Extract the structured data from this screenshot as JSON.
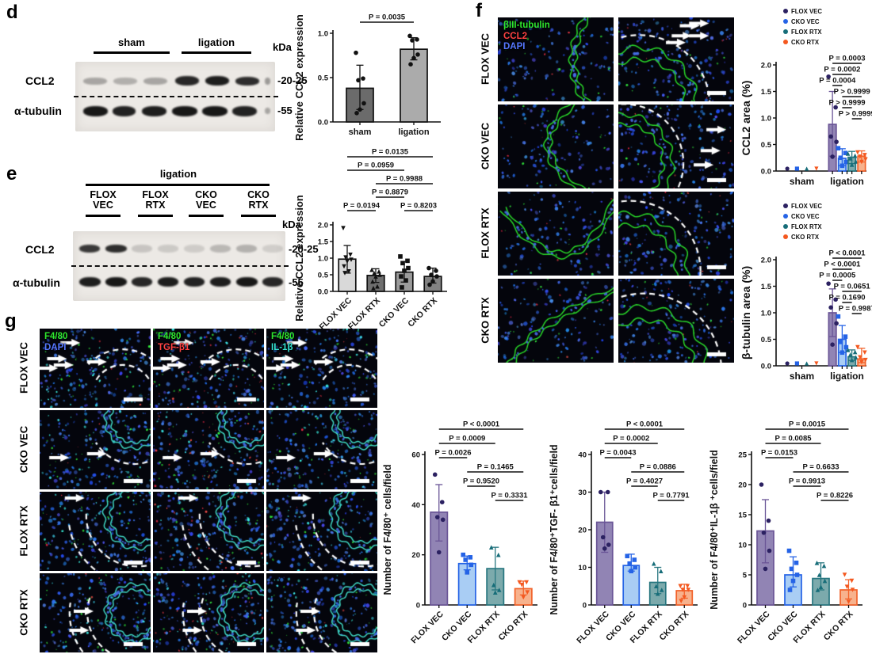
{
  "panels": {
    "d": "d",
    "e": "e",
    "f": "f",
    "g": "g"
  },
  "blot_d": {
    "group_labels": [
      "sham",
      "ligation"
    ],
    "kda_label": "kDa",
    "bands": [
      {
        "protein": "CCL2",
        "mw": "-20-25"
      },
      {
        "protein": "α-tubulin",
        "mw": "-55"
      }
    ]
  },
  "blot_e": {
    "condition_label": "ligation",
    "lane_groups": [
      {
        "line1": "FLOX",
        "line2": "VEC"
      },
      {
        "line1": "FLOX",
        "line2": "RTX"
      },
      {
        "line1": "CKO",
        "line2": "VEC"
      },
      {
        "line1": "CKO",
        "line2": "RTX"
      }
    ],
    "kda_label": "kDa",
    "bands": [
      {
        "protein": "CCL2",
        "mw": "-20-25"
      },
      {
        "protein": "α-tubulin",
        "mw": "-55"
      }
    ]
  },
  "panel_f": {
    "row_labels": [
      "FLOX VEC",
      "CKO VEC",
      "FLOX RTX",
      "CKO RTX"
    ],
    "stain_legend": [
      {
        "label": "βIII-tubulin",
        "color": "#2ee62e"
      },
      {
        "label": "CCL2",
        "color": "#ff4242"
      },
      {
        "label": "DAPI",
        "color": "#5577ff"
      }
    ]
  },
  "panel_g": {
    "row_labels": [
      "FLOX VEC",
      "CKO VEC",
      "FLOX RTX",
      "CKO RTX"
    ],
    "column_stains": [
      [
        {
          "label": "F4/80",
          "color": "#2ee62e"
        },
        {
          "label": "DAPI",
          "color": "#5577ff"
        }
      ],
      [
        {
          "label": "F4/80",
          "color": "#2ee62e"
        },
        {
          "label": "TGF-β1",
          "color": "#ff4242"
        }
      ],
      [
        {
          "label": "F4/80",
          "color": "#2ee62e"
        },
        {
          "label": "IL-1β",
          "color": "#35e3d2"
        }
      ]
    ]
  },
  "series_colors": {
    "FLOX VEC": {
      "dot": "#2b2161",
      "fill": "#9184b4",
      "edge": "#6a5596",
      "marker": "circle"
    },
    "CKO VEC": {
      "dot": "#2563e6",
      "fill": "#a9cdf4",
      "edge": "#2563e6",
      "marker": "square"
    },
    "FLOX RTX": {
      "dot": "#176d79",
      "fill": "#7caaac",
      "edge": "#27767f",
      "marker": "tri-up"
    },
    "CKO RTX": {
      "dot": "#f4581f",
      "fill": "#f7b28d",
      "edge": "#f2622a",
      "marker": "tri-down"
    }
  },
  "chart_data": [
    {
      "id": "d_ccl2_wb",
      "type": "bar",
      "title": "",
      "ylabel": "Relative CCL2 expression",
      "ylim": [
        0,
        1.0
      ],
      "yticks": [
        0,
        0.5,
        1.0
      ],
      "tick_decimals": 1,
      "categories": [
        "sham",
        "ligation"
      ],
      "values": [
        0.38,
        0.82
      ],
      "errors": [
        [
          0.14,
          0.64
        ],
        [
          0.7,
          0.95
        ]
      ],
      "points": [
        [
          0.78,
          0.49,
          0.47,
          0.21,
          0.14,
          0.1
        ],
        [
          0.97,
          0.93,
          0.92,
          0.76,
          0.72,
          0.65
        ]
      ],
      "bar_fills": [
        "#6b6b6b",
        "#ababab"
      ],
      "markers": [
        "circle",
        "circle"
      ],
      "marker_color": "#111111",
      "brackets": [
        {
          "a": 0,
          "b": 1,
          "row": 0,
          "label": "P = 0.0035"
        }
      ]
    },
    {
      "id": "e_ccl2_wb",
      "type": "bar",
      "title": "",
      "ylabel": "Relative CCL2 expression",
      "ylim": [
        0,
        2.0
      ],
      "yticks": [
        0,
        0.5,
        1.0,
        1.5,
        2.0
      ],
      "tick_decimals": 1,
      "categories": [
        "FLOX VEC",
        "FLOX RTX",
        "CKO VEC",
        "CKO RTX"
      ],
      "values": [
        0.97,
        0.48,
        0.58,
        0.45
      ],
      "errors": [
        [
          0.55,
          1.38
        ],
        [
          0.27,
          0.68
        ],
        [
          0.28,
          0.9
        ],
        [
          0.25,
          0.7
        ]
      ],
      "points": [
        [
          1.9,
          1.1,
          1.02,
          0.95,
          0.9,
          0.75,
          0.6,
          0.55
        ],
        [
          0.65,
          0.6,
          0.55,
          0.5,
          0.45,
          0.3,
          0.15,
          0.1
        ],
        [
          1.05,
          0.92,
          0.85,
          0.7,
          0.62,
          0.45,
          0.33,
          0.12
        ],
        [
          0.7,
          0.62,
          0.5,
          0.45,
          0.3,
          0.2
        ]
      ],
      "bar_fills": [
        "#d9d9d9",
        "#6f6f6f",
        "#9b9b9b",
        "#828282"
      ],
      "markers": [
        "tri-down",
        "tri-up",
        "square",
        "circle"
      ],
      "marker_color": "#111111",
      "brackets": [
        {
          "a": 0,
          "b": 3,
          "row": 0,
          "label": "P = 0.0135"
        },
        {
          "a": 0,
          "b": 2,
          "row": 1,
          "label": "P = 0.0959"
        },
        {
          "a": 1,
          "b": 3,
          "row": 2,
          "label": "P = 0.9988"
        },
        {
          "a": 1,
          "b": 2,
          "row": 3,
          "label": "P = 0.8879"
        },
        {
          "a": 0,
          "b": 1,
          "row": 4,
          "label": "P = 0.0194"
        },
        {
          "a": 2,
          "b": 3,
          "row": 4,
          "label": "P = 0.8203"
        }
      ]
    },
    {
      "id": "f_ccl2_area",
      "type": "grouped",
      "title": "",
      "ylabel": "CCL2 area (%)",
      "ylim": [
        0,
        2.0
      ],
      "yticks": [
        0,
        0.5,
        1.0,
        1.5,
        2.0
      ],
      "tick_decimals": 1,
      "group_labels": [
        "sham",
        "ligation"
      ],
      "series": [
        "FLOX VEC",
        "CKO VEC",
        "FLOX RTX",
        "CKO RTX"
      ],
      "sham_values": [
        0,
        0,
        0,
        0
      ],
      "values": [
        0.88,
        0.24,
        0.26,
        0.28
      ],
      "errors": [
        [
          0.28,
          1.5
        ],
        [
          0.1,
          0.42
        ],
        [
          0.14,
          0.37
        ],
        [
          0.17,
          0.38
        ]
      ],
      "points": [
        [
          1.78,
          1.2,
          0.65,
          0.55,
          0.27
        ],
        [
          0.43,
          0.34,
          0.25,
          0.17,
          0.1
        ],
        [
          0.33,
          0.29,
          0.24,
          0.18,
          0.12
        ],
        [
          0.35,
          0.3,
          0.27,
          0.22,
          0.17
        ]
      ],
      "brackets": [
        {
          "a": 0,
          "b": 3,
          "row": 0,
          "label": "P = 0.0003"
        },
        {
          "a": 0,
          "b": 2,
          "row": 1,
          "label": "P = 0.0002"
        },
        {
          "a": 0,
          "b": 1,
          "row": 2,
          "label": "P = 0.0004"
        },
        {
          "a": 1,
          "b": 3,
          "row": 3,
          "label": "P > 0.9999"
        },
        {
          "a": 1,
          "b": 2,
          "row": 4,
          "label": "P > 0.9999"
        },
        {
          "a": 2,
          "b": 3,
          "row": 5,
          "label": "P > 0.9999"
        }
      ]
    },
    {
      "id": "f_btub_area",
      "type": "grouped",
      "title": "",
      "ylabel": "β-tubulin area (%)",
      "ylim": [
        0,
        2.0
      ],
      "yticks": [
        0,
        0.5,
        1.0,
        1.5,
        2.0
      ],
      "tick_decimals": 1,
      "group_labels": [
        "sham",
        "ligation"
      ],
      "series": [
        "FLOX VEC",
        "CKO VEC",
        "FLOX RTX",
        "CKO RTX"
      ],
      "sham_values": [
        0,
        0,
        0,
        0
      ],
      "values": [
        1.0,
        0.5,
        0.17,
        0.13
      ],
      "errors": [
        [
          0.55,
          1.45
        ],
        [
          0.25,
          0.76
        ],
        [
          0.1,
          0.3
        ],
        [
          0.06,
          0.33
        ]
      ],
      "points": [
        [
          1.55,
          1.25,
          1.1,
          0.8,
          0.4
        ],
        [
          0.93,
          0.55,
          0.45,
          0.35,
          0.25
        ],
        [
          0.3,
          0.26,
          0.21,
          0.16,
          0.11
        ],
        [
          0.35,
          0.25,
          0.16,
          0.11,
          0.07
        ]
      ],
      "brackets": [
        {
          "a": 0,
          "b": 3,
          "row": 0,
          "label": "P < 0.0001"
        },
        {
          "a": 0,
          "b": 2,
          "row": 1,
          "label": "P < 0.0001"
        },
        {
          "a": 0,
          "b": 1,
          "row": 2,
          "label": "P = 0.0005"
        },
        {
          "a": 1,
          "b": 3,
          "row": 3,
          "label": "P = 0.0651"
        },
        {
          "a": 1,
          "b": 2,
          "row": 4,
          "label": "P = 0.1690"
        },
        {
          "a": 2,
          "b": 3,
          "row": 5,
          "label": "P = 0.9987"
        }
      ]
    },
    {
      "id": "g_f480",
      "type": "bar",
      "title": "",
      "ylabel": "Number of F4/80⁺ cells/field",
      "ylim": [
        0,
        60
      ],
      "yticks": [
        0,
        20,
        40,
        60
      ],
      "tick_decimals": 0,
      "categories": [
        "FLOX VEC",
        "CKO VEC",
        "FLOX RTX",
        "CKO RTX"
      ],
      "series_names": [
        "FLOX VEC",
        "CKO VEC",
        "FLOX RTX",
        "CKO RTX"
      ],
      "values": [
        37,
        16.5,
        14.5,
        6.5
      ],
      "errors": [
        [
          25.5,
          48
        ],
        [
          14,
          19.5
        ],
        [
          6,
          23
        ],
        [
          4,
          9.5
        ]
      ],
      "points": [
        [
          52,
          41,
          35,
          34,
          21
        ],
        [
          20,
          19,
          18,
          16,
          13
        ],
        [
          23,
          20,
          8,
          6,
          5
        ],
        [
          9,
          9,
          8,
          5,
          3
        ]
      ],
      "brackets": [
        {
          "a": 0,
          "b": 3,
          "row": 0,
          "label": "P < 0.0001"
        },
        {
          "a": 0,
          "b": 2,
          "row": 1,
          "label": "P = 0.0009"
        },
        {
          "a": 0,
          "b": 1,
          "row": 2,
          "label": "P = 0.0026"
        },
        {
          "a": 1,
          "b": 3,
          "row": 3,
          "label": "P = 0.1465"
        },
        {
          "a": 1,
          "b": 2,
          "row": 4,
          "label": "P = 0.9520"
        },
        {
          "a": 2,
          "b": 3,
          "row": 5,
          "label": "P = 0.3331"
        }
      ]
    },
    {
      "id": "g_tgfb1",
      "type": "bar",
      "title": "",
      "ylabel": "Number of F4/80⁺TGF- β1⁺cells/field",
      "ylim": [
        0,
        40
      ],
      "yticks": [
        0,
        10,
        20,
        30,
        40
      ],
      "tick_decimals": 0,
      "categories": [
        "FLOX VEC",
        "CKO VEC",
        "FLOX RTX",
        "CKO RTX"
      ],
      "series_names": [
        "FLOX VEC",
        "CKO VEC",
        "FLOX RTX",
        "CKO RTX"
      ],
      "values": [
        22,
        10.5,
        6,
        3.8
      ],
      "errors": [
        [
          14,
          30
        ],
        [
          9,
          13.5
        ],
        [
          3,
          10
        ],
        [
          1.8,
          5.5
        ]
      ],
      "points": [
        [
          30,
          30,
          18,
          16,
          15
        ],
        [
          13,
          12,
          11,
          10,
          9
        ],
        [
          11,
          9,
          5,
          4,
          3
        ],
        [
          5,
          5,
          4,
          4,
          2,
          1
        ]
      ],
      "brackets": [
        {
          "a": 0,
          "b": 3,
          "row": 0,
          "label": "P < 0.0001"
        },
        {
          "a": 0,
          "b": 2,
          "row": 1,
          "label": "P = 0.0002"
        },
        {
          "a": 0,
          "b": 1,
          "row": 2,
          "label": "P = 0.0043"
        },
        {
          "a": 1,
          "b": 3,
          "row": 3,
          "label": "P = 0.0886"
        },
        {
          "a": 1,
          "b": 2,
          "row": 4,
          "label": "P = 0.4027"
        },
        {
          "a": 2,
          "b": 3,
          "row": 5,
          "label": "P = 0.7791"
        }
      ]
    },
    {
      "id": "g_il1b",
      "type": "bar",
      "title": "",
      "ylabel": "Number of F4/80⁺IL-1β ⁺cells/field",
      "ylim": [
        0,
        25
      ],
      "yticks": [
        0,
        5,
        10,
        15,
        20,
        25
      ],
      "tick_decimals": 0,
      "categories": [
        "FLOX VEC",
        "CKO VEC",
        "FLOX RTX",
        "CKO RTX"
      ],
      "series_names": [
        "FLOX VEC",
        "CKO VEC",
        "FLOX RTX",
        "CKO RTX"
      ],
      "values": [
        12.3,
        5,
        4.4,
        2.5
      ],
      "errors": [
        [
          7,
          17.5
        ],
        [
          3,
          8
        ],
        [
          2.5,
          7
        ],
        [
          1,
          4.2
        ]
      ],
      "points": [
        [
          20,
          14,
          12,
          9,
          6
        ],
        [
          9,
          7,
          6,
          5,
          4,
          2.5
        ],
        [
          7,
          6.5,
          5,
          4,
          3,
          2.5
        ],
        [
          5,
          4,
          3,
          2.5,
          0.5
        ]
      ],
      "brackets": [
        {
          "a": 0,
          "b": 3,
          "row": 0,
          "label": "P = 0.0015"
        },
        {
          "a": 0,
          "b": 2,
          "row": 1,
          "label": "P = 0.0085"
        },
        {
          "a": 0,
          "b": 1,
          "row": 2,
          "label": "P = 0.0153"
        },
        {
          "a": 1,
          "b": 3,
          "row": 3,
          "label": "P = 0.6633"
        },
        {
          "a": 1,
          "b": 2,
          "row": 4,
          "label": "P = 0.9913"
        },
        {
          "a": 2,
          "b": 3,
          "row": 5,
          "label": "P = 0.8226"
        }
      ]
    }
  ]
}
